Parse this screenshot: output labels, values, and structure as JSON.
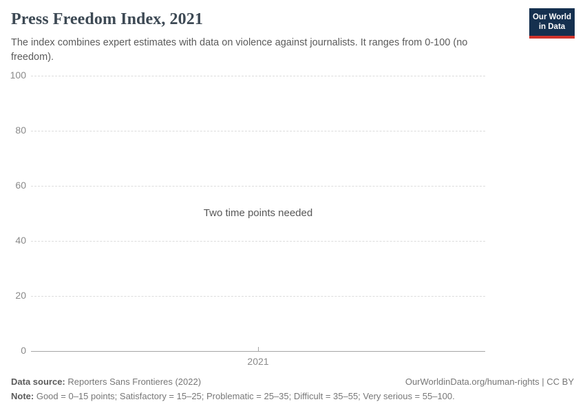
{
  "header": {
    "title": "Press Freedom Index, 2021",
    "subtitle": "The index combines expert estimates with data on violence against journalists. It ranges from 0-100 (no freedom).",
    "logo": {
      "line1": "Our World",
      "line2": "in Data",
      "bg_color": "#15304f",
      "accent_color": "#d0342c"
    }
  },
  "chart_data": {
    "type": "line",
    "title": "Press Freedom Index, 2021",
    "xlabel": "",
    "ylabel": "",
    "ylim": [
      0,
      100
    ],
    "yticks": [
      0,
      20,
      40,
      60,
      80,
      100
    ],
    "xticks": [
      "2021"
    ],
    "series": [],
    "message": "Two time points needed",
    "grid": "horizontal-dashed",
    "legend_position": "none"
  },
  "footer": {
    "data_source_label": "Data source:",
    "data_source_value": "Reporters Sans Frontieres (2022)",
    "attribution": "OurWorldinData.org/human-rights | CC BY",
    "note_label": "Note:",
    "note_value": "Good = 0–15 points; Satisfactory = 15–25; Problematic = 25–35; Difficult = 35–55; Very serious = 55–100."
  },
  "colors": {
    "title_text": "#3d4954",
    "body_text": "#5b5b5b",
    "axis_text": "#8a8a8a",
    "gridline": "#dcdcdc",
    "axis_line": "#a5a5a5"
  }
}
